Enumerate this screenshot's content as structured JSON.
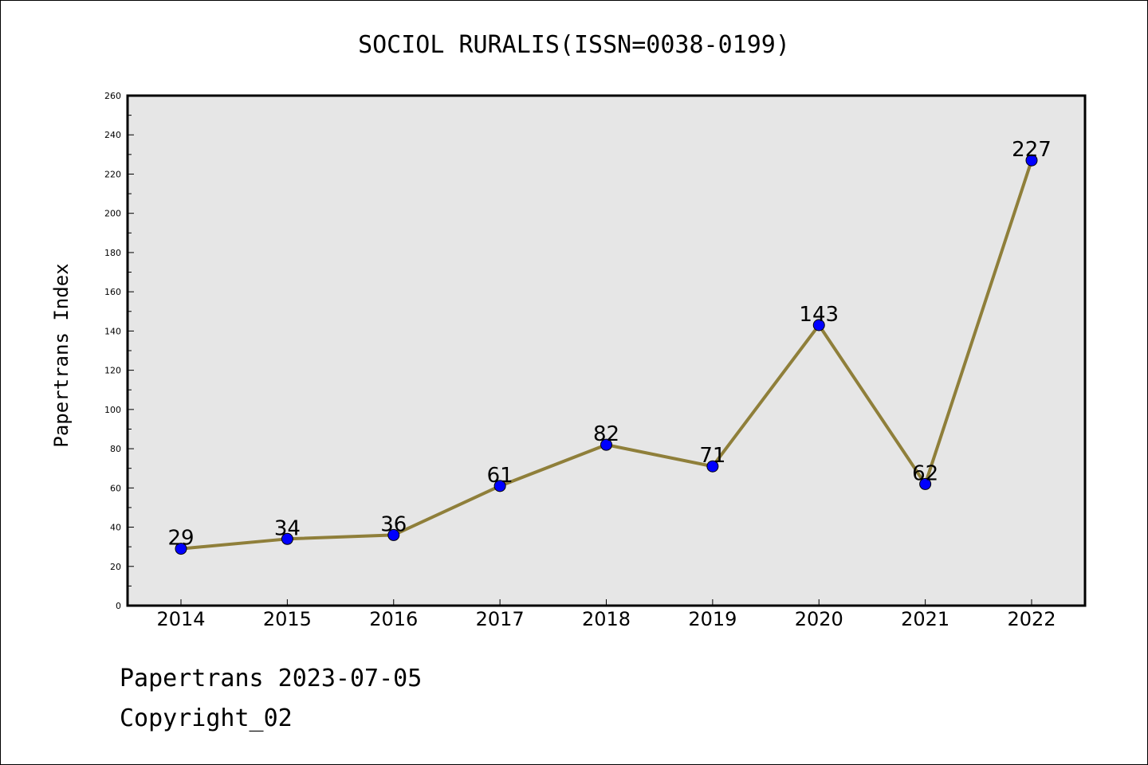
{
  "chart_data": {
    "type": "line",
    "title": "SOCIOL RURALIS(ISSN=0038-0199)",
    "ylabel": "Papertrans Index",
    "xlabel": "",
    "categories": [
      "2014",
      "2015",
      "2016",
      "2017",
      "2018",
      "2019",
      "2020",
      "2021",
      "2022"
    ],
    "series": [
      {
        "values": [
          29,
          34,
          36,
          61,
          82,
          71,
          143,
          62,
          227
        ]
      }
    ],
    "ylim": [
      0,
      260
    ],
    "yticks": [
      0,
      20,
      40,
      60,
      80,
      100,
      120,
      140,
      160,
      180,
      200,
      220,
      240,
      260
    ],
    "grid": false,
    "colors": {
      "plot_background": "#e6e6e6",
      "line": "#8f7f3a",
      "marker_fill": "#0000ff",
      "marker_edge": "#000000"
    }
  },
  "footer": {
    "line1": "Papertrans 2023-07-05",
    "line2": "Copyright_02"
  }
}
